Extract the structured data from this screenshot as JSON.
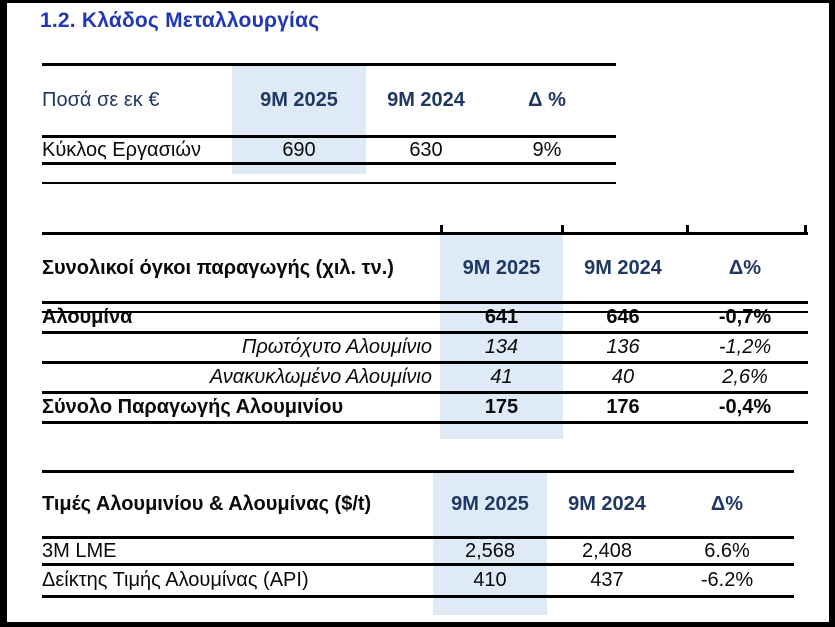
{
  "page": {
    "title": "1.2. Κλάδος Μεταλλουργίας"
  },
  "colors": {
    "title_blue": "#2038B8",
    "header_navy": "#1F3864",
    "highlight_blue": "#DEEBF7",
    "text_black": "#0A0A0A",
    "rule_black": "#000000"
  },
  "tables": [
    {
      "name": "revenue",
      "header": {
        "label": "Ποσά σε εκ €",
        "col1": "9M 2025",
        "col2": "9M 2024",
        "col3": "Δ %"
      },
      "rows": [
        {
          "label": "Κύκλος Εργασιών",
          "v2025": "690",
          "v2024": "630",
          "delta": "9%"
        }
      ]
    },
    {
      "name": "production-volumes",
      "header": {
        "label": "Συνολικοί όγκοι παραγωγής (χιλ. τν.)",
        "col1": "9M 2025",
        "col2": "9M 2024",
        "col3": "Δ%"
      },
      "rows": [
        {
          "label": "Αλουμίνα",
          "v2025": "641",
          "v2024": "646",
          "delta": "-0,7%",
          "style": "bold"
        },
        {
          "label": "Πρωτόχυτο Αλουμίνιο",
          "v2025": "134",
          "v2024": "136",
          "delta": "-1,2%",
          "style": "italic"
        },
        {
          "label": "Ανακυκλωμένο Αλουμίνιο",
          "v2025": "41",
          "v2024": "40",
          "delta": "2,6%",
          "style": "italic"
        },
        {
          "label": "Σύνολο Παραγωγής Αλουμινίου",
          "v2025": "175",
          "v2024": "176",
          "delta": "-0,4%",
          "style": "bold"
        }
      ]
    },
    {
      "name": "prices",
      "header": {
        "label": "Τιμές Αλουμινίου & Αλουμίνας ($/t)",
        "col1": "9M 2025",
        "col2": "9M 2024",
        "col3": "Δ%"
      },
      "rows": [
        {
          "label": "3M LME",
          "v2025": "2,568",
          "v2024": "2,408",
          "delta": "6.6%"
        },
        {
          "label": "Δείκτης Τιμής Αλουμίνας (API)",
          "v2025": "410",
          "v2024": "437",
          "delta": "-6.2%"
        }
      ]
    }
  ]
}
